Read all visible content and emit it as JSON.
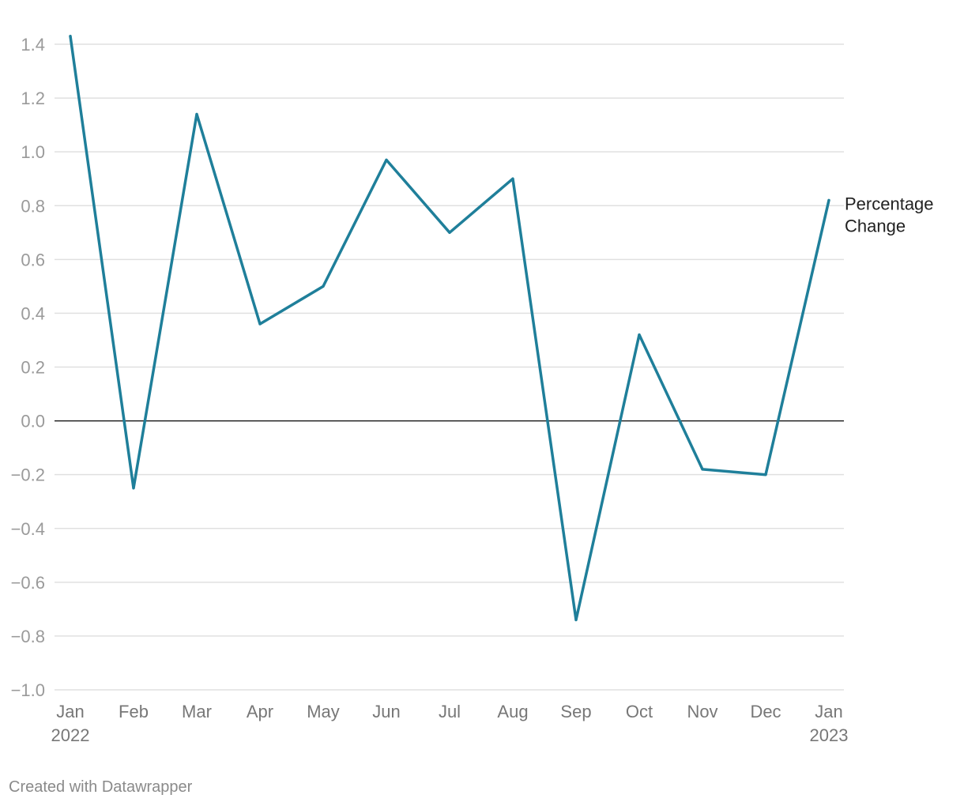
{
  "chart_data": {
    "type": "line",
    "x": [
      "Jan 2022",
      "Feb 2022",
      "Mar 2022",
      "Apr 2022",
      "May 2022",
      "Jun 2022",
      "Jul 2022",
      "Aug 2022",
      "Sep 2022",
      "Oct 2022",
      "Nov 2022",
      "Dec 2022",
      "Jan 2023"
    ],
    "x_tick_labels": [
      [
        "Jan",
        "2022"
      ],
      [
        "Feb"
      ],
      [
        "Mar"
      ],
      [
        "Apr"
      ],
      [
        "May"
      ],
      [
        "Jun"
      ],
      [
        "Jul"
      ],
      [
        "Aug"
      ],
      [
        "Sep"
      ],
      [
        "Oct"
      ],
      [
        "Nov"
      ],
      [
        "Dec"
      ],
      [
        "Jan",
        "2023"
      ]
    ],
    "series": [
      {
        "name": "Percentage Change",
        "name_lines": [
          "Percentage",
          "Change"
        ],
        "color": "#1f7f9a",
        "values": [
          1.43,
          -0.25,
          1.14,
          0.36,
          0.5,
          0.97,
          0.7,
          0.9,
          -0.74,
          0.32,
          -0.18,
          -0.2,
          0.82
        ]
      }
    ],
    "ylim": [
      -1.0,
      1.4
    ],
    "y_ticks": [
      1.4,
      1.2,
      1.0,
      0.8,
      0.6,
      0.4,
      0.2,
      0.0,
      -0.2,
      -0.4,
      -0.6,
      -0.8,
      -1.0
    ],
    "y_tick_labels": [
      "1.4",
      "1.2",
      "1.0",
      "0.8",
      "0.6",
      "0.4",
      "0.2",
      "0.0",
      "−0.2",
      "−0.4",
      "−0.6",
      "−0.8",
      "−1.0"
    ],
    "grid": true,
    "legend": "inline-right",
    "title": "",
    "xlabel": "",
    "ylabel": ""
  },
  "footer": {
    "credit": "Created with Datawrapper"
  }
}
